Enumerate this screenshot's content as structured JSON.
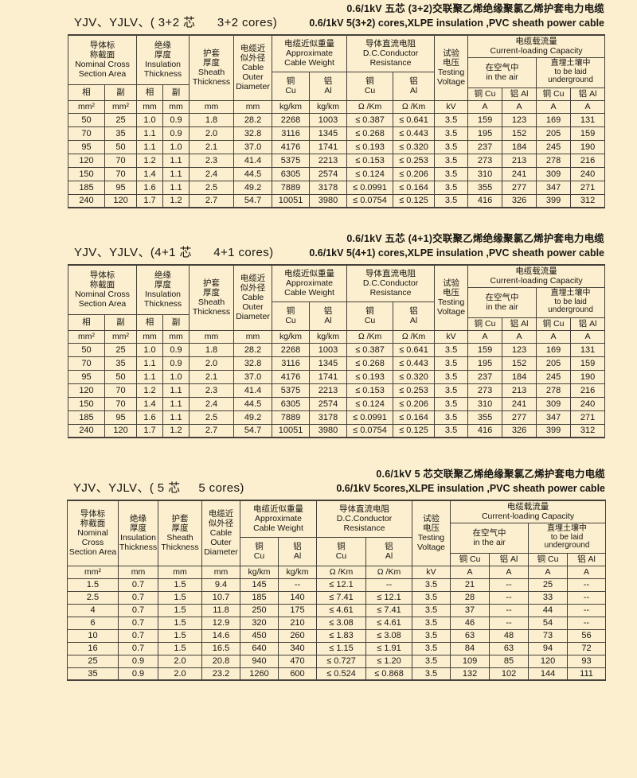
{
  "page": {
    "background": "#fcefcf",
    "line_color": "#45413a"
  },
  "header_split": {
    "nominal": "导体标\n称截面\nNominal Cross\nSection Area",
    "insulation": "绝缘\n厚度\nInsulation\nThickness",
    "sheath": "护套\n厚度\nSheath\nThickness",
    "outer": "电缆近\n似外径\nCable\nOuter\nDiameter",
    "weight": "电缆近似重量\nApproximate\nCable Weight",
    "resistance": "导体直流电阻\nD.C.Conductor\nResistance",
    "testing": "试验\n电压\nTesting\nVoltage",
    "capacity": "电缆载流量\nCurrent-loading Capacity",
    "in_air": "在空气中\nin the air",
    "underground": "直埋土壤中\nto be laid\nunderground",
    "phase": "相",
    "aux": "副",
    "cu": "铜\nCu",
    "al": "铝\nAl",
    "cu_short": "铜 Cu",
    "al_short": "铝 Al",
    "units": [
      "mm²",
      "mm²",
      "mm",
      "mm",
      "mm",
      "mm",
      "kg/km",
      "kg/km",
      "Ω /Km",
      "Ω /Km",
      "kV",
      "A",
      "A",
      "A",
      "A"
    ]
  },
  "header_five": {
    "nominal": "导体标\n称截面\nNominal\nCross\nSection Area",
    "units": [
      "mm²",
      "mm",
      "mm",
      "mm",
      "kg/km",
      "kg/km",
      "Ω /Km",
      "Ω /Km",
      "kV",
      "A",
      "A",
      "A",
      "A"
    ]
  },
  "sections": [
    {
      "label": "YJV、YJLV、( 3+2 芯      3+2 cores)",
      "title_zh": "0.6/1kV 五芯 (3+2)交联聚乙烯绝缘聚氯乙烯护套电力电缆",
      "title_en": "0.6/1kV 5(3+2) cores,XLPE insulation ,PVC sheath power cable",
      "rows": [
        [
          "50",
          "25",
          "1.0",
          "0.9",
          "1.8",
          "28.2",
          "2268",
          "1003",
          "≤ 0.387",
          "≤ 0.641",
          "3.5",
          "159",
          "123",
          "169",
          "131"
        ],
        [
          "70",
          "35",
          "1.1",
          "0.9",
          "2.0",
          "32.8",
          "3116",
          "1345",
          "≤ 0.268",
          "≤ 0.443",
          "3.5",
          "195",
          "152",
          "205",
          "159"
        ],
        [
          "95",
          "50",
          "1.1",
          "1.0",
          "2.1",
          "37.0",
          "4176",
          "1741",
          "≤ 0.193",
          "≤ 0.320",
          "3.5",
          "237",
          "184",
          "245",
          "190"
        ],
        [
          "120",
          "70",
          "1.2",
          "1.1",
          "2.3",
          "41.4",
          "5375",
          "2213",
          "≤ 0.153",
          "≤ 0.253",
          "3.5",
          "273",
          "213",
          "278",
          "216"
        ],
        [
          "150",
          "70",
          "1.4",
          "1.1",
          "2.4",
          "44.5",
          "6305",
          "2574",
          "≤ 0.124",
          "≤ 0.206",
          "3.5",
          "310",
          "241",
          "309",
          "240"
        ],
        [
          "185",
          "95",
          "1.6",
          "1.1",
          "2.5",
          "49.2",
          "7889",
          "3178",
          "≤ 0.0991",
          "≤ 0.164",
          "3.5",
          "355",
          "277",
          "347",
          "271"
        ],
        [
          "240",
          "120",
          "1.7",
          "1.2",
          "2.7",
          "54.7",
          "10051",
          "3980",
          "≤ 0.0754",
          "≤ 0.125",
          "3.5",
          "416",
          "326",
          "399",
          "312"
        ]
      ]
    },
    {
      "label": "YJV、YJLV、(4+1 芯      4+1 cores)",
      "title_zh": "0.6/1kV 五芯 (4+1)交联聚乙烯绝缘聚氯乙烯护套电力电缆",
      "title_en": "0.6/1kV 5(4+1) cores,XLPE insulation ,PVC sheath power cable",
      "rows": [
        [
          "50",
          "25",
          "1.0",
          "0.9",
          "1.8",
          "28.2",
          "2268",
          "1003",
          "≤ 0.387",
          "≤ 0.641",
          "3.5",
          "159",
          "123",
          "169",
          "131"
        ],
        [
          "70",
          "35",
          "1.1",
          "0.9",
          "2.0",
          "32.8",
          "3116",
          "1345",
          "≤ 0.268",
          "≤ 0.443",
          "3.5",
          "195",
          "152",
          "205",
          "159"
        ],
        [
          "95",
          "50",
          "1.1",
          "1.0",
          "2.1",
          "37.0",
          "4176",
          "1741",
          "≤ 0.193",
          "≤ 0.320",
          "3.5",
          "237",
          "184",
          "245",
          "190"
        ],
        [
          "120",
          "70",
          "1.2",
          "1.1",
          "2.3",
          "41.4",
          "5375",
          "2213",
          "≤ 0.153",
          "≤ 0.253",
          "3.5",
          "273",
          "213",
          "278",
          "216"
        ],
        [
          "150",
          "70",
          "1.4",
          "1.1",
          "2.4",
          "44.5",
          "6305",
          "2574",
          "≤ 0.124",
          "≤ 0.206",
          "3.5",
          "310",
          "241",
          "309",
          "240"
        ],
        [
          "185",
          "95",
          "1.6",
          "1.1",
          "2.5",
          "49.2",
          "7889",
          "3178",
          "≤ 0.0991",
          "≤ 0.164",
          "3.5",
          "355",
          "277",
          "347",
          "271"
        ],
        [
          "240",
          "120",
          "1.7",
          "1.2",
          "2.7",
          "54.7",
          "10051",
          "3980",
          "≤ 0.0754",
          "≤ 0.125",
          "3.5",
          "416",
          "326",
          "399",
          "312"
        ]
      ]
    },
    {
      "label": "YJV、YJLV、( 5 芯     5 cores)",
      "title_zh": "0.6/1kV 5 芯交联聚乙烯绝缘聚氯乙烯护套电力电缆",
      "title_en": "0.6/1kV 5cores,XLPE insulation ,PVC sheath power cable",
      "rows": [
        [
          "1.5",
          "0.7",
          "1.5",
          "9.4",
          "145",
          "--",
          "≤ 12.1",
          "--",
          "3.5",
          "21",
          "--",
          "25",
          "--"
        ],
        [
          "2.5",
          "0.7",
          "1.5",
          "10.7",
          "185",
          "140",
          "≤ 7.41",
          "≤ 12.1",
          "3.5",
          "28",
          "--",
          "33",
          "--"
        ],
        [
          "4",
          "0.7",
          "1.5",
          "11.8",
          "250",
          "175",
          "≤ 4.61",
          "≤ 7.41",
          "3.5",
          "37",
          "--",
          "44",
          "--"
        ],
        [
          "6",
          "0.7",
          "1.5",
          "12.9",
          "320",
          "210",
          "≤ 3.08",
          "≤ 4.61",
          "3.5",
          "46",
          "--",
          "54",
          "--"
        ],
        [
          "10",
          "0.7",
          "1.5",
          "14.6",
          "450",
          "260",
          "≤ 1.83",
          "≤ 3.08",
          "3.5",
          "63",
          "48",
          "73",
          "56"
        ],
        [
          "16",
          "0.7",
          "1.5",
          "16.5",
          "640",
          "340",
          "≤ 1.15",
          "≤ 1.91",
          "3.5",
          "84",
          "63",
          "94",
          "72"
        ],
        [
          "25",
          "0.9",
          "2.0",
          "20.8",
          "940",
          "470",
          "≤ 0.727",
          "≤ 1.20",
          "3.5",
          "109",
          "85",
          "120",
          "93"
        ],
        [
          "35",
          "0.9",
          "2.0",
          "23.2",
          "1260",
          "600",
          "≤ 0.524",
          "≤ 0.868",
          "3.5",
          "132",
          "102",
          "144",
          "111"
        ]
      ]
    }
  ]
}
